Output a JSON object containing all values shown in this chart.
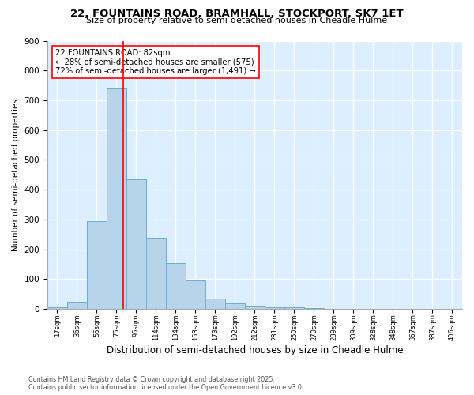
{
  "title": "22, FOUNTAINS ROAD, BRAMHALL, STOCKPORT, SK7 1ET",
  "subtitle": "Size of property relative to semi-detached houses in Cheadle Hulme",
  "xlabel": "Distribution of semi-detached houses by size in Cheadle Hulme",
  "ylabel": "Number of semi-detached properties",
  "bin_labels": [
    "17sqm",
    "36sqm",
    "56sqm",
    "75sqm",
    "95sqm",
    "114sqm",
    "134sqm",
    "153sqm",
    "173sqm",
    "192sqm",
    "212sqm",
    "231sqm",
    "250sqm",
    "270sqm",
    "289sqm",
    "309sqm",
    "328sqm",
    "348sqm",
    "367sqm",
    "387sqm",
    "406sqm"
  ],
  "bar_heights": [
    5,
    25,
    295,
    740,
    435,
    240,
    155,
    97,
    35,
    20,
    10,
    7,
    5,
    2,
    1,
    0,
    0,
    0,
    0,
    0,
    0
  ],
  "bar_color": "#b8d4ea",
  "bar_edge_color": "#6aaed6",
  "property_bar_index": 3,
  "annotation_title": "22 FOUNTAINS ROAD: 82sqm",
  "annotation_line1": "← 28% of semi-detached houses are smaller (575)",
  "annotation_line2": "72% of semi-detached houses are larger (1,491) →",
  "footer_line1": "Contains HM Land Registry data © Crown copyright and database right 2025.",
  "footer_line2": "Contains public sector information licensed under the Open Government Licence v3.0.",
  "background_color": "#ddeeff",
  "ylim": [
    0,
    900
  ],
  "yticks": [
    0,
    100,
    200,
    300,
    400,
    500,
    600,
    700,
    800,
    900
  ]
}
